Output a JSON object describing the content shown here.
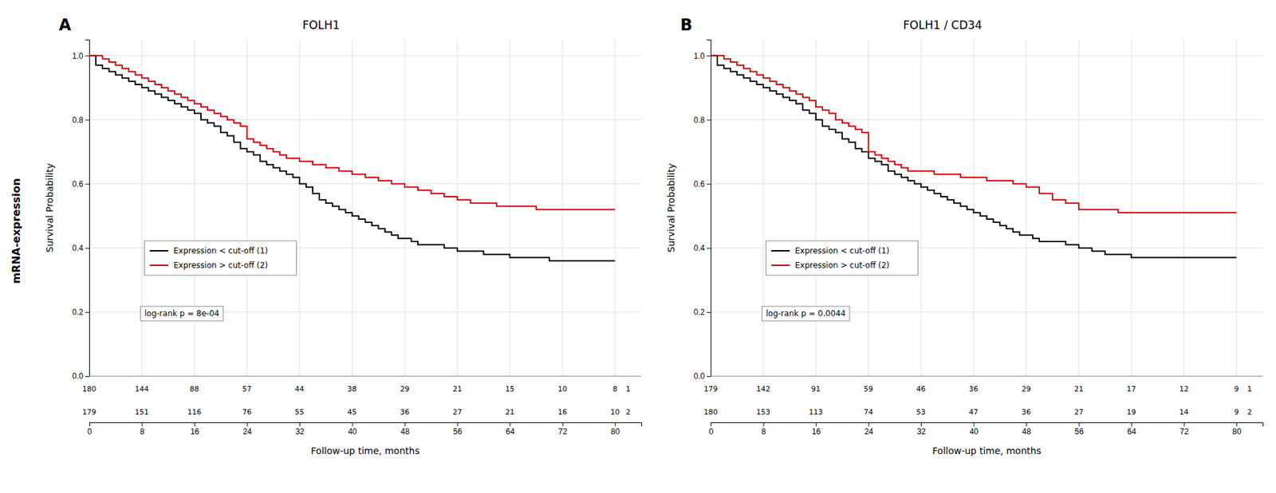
{
  "side_title": "mRNA-expression",
  "chart_data": [
    {
      "type": "line",
      "line_style": "step",
      "title": "FOLH1",
      "panel_label": "A",
      "annotation": "log-rank p = 8e-04",
      "xlabel": "Follow-up time, months",
      "ylabel": "Survival Probability",
      "xlim": [
        0,
        84
      ],
      "ylim": [
        0.0,
        1.05
      ],
      "xticks": [
        0,
        8,
        16,
        24,
        32,
        40,
        48,
        56,
        64,
        72,
        80
      ],
      "yticks": [
        {
          "value": 0.0,
          "label": "0.0"
        },
        0.2,
        0.4,
        0.6,
        0.8,
        {
          "value": 1.0,
          "label": "1.0"
        }
      ],
      "grid": true,
      "legend": "lower left",
      "series": [
        {
          "name": "Expression < cut-off (1)",
          "color": "#000000",
          "x": [
            0,
            1,
            2,
            3,
            4,
            5,
            6,
            7,
            8,
            9,
            10,
            11,
            12,
            13,
            14,
            15,
            16,
            17,
            18,
            19,
            20,
            21,
            22,
            23,
            24,
            25,
            26,
            27,
            28,
            29,
            30,
            31,
            32,
            33,
            34,
            35,
            36,
            37,
            38,
            39,
            40,
            41,
            42,
            43,
            44,
            45,
            46,
            47,
            48,
            49,
            50,
            52,
            54,
            56,
            58,
            60,
            62,
            64,
            66,
            68,
            70,
            72,
            74,
            76,
            78,
            80
          ],
          "values": [
            1.0,
            0.97,
            0.96,
            0.95,
            0.94,
            0.93,
            0.92,
            0.91,
            0.9,
            0.89,
            0.88,
            0.87,
            0.86,
            0.85,
            0.84,
            0.83,
            0.82,
            0.8,
            0.79,
            0.78,
            0.76,
            0.75,
            0.73,
            0.71,
            0.7,
            0.69,
            0.67,
            0.66,
            0.65,
            0.64,
            0.63,
            0.62,
            0.6,
            0.59,
            0.57,
            0.55,
            0.54,
            0.53,
            0.52,
            0.51,
            0.5,
            0.49,
            0.48,
            0.47,
            0.46,
            0.45,
            0.44,
            0.43,
            0.43,
            0.42,
            0.41,
            0.41,
            0.4,
            0.39,
            0.39,
            0.38,
            0.38,
            0.37,
            0.37,
            0.37,
            0.36,
            0.36,
            0.36,
            0.36,
            0.36,
            0.36
          ]
        },
        {
          "name": "Expression > cut-off (2)",
          "color": "#cc0000",
          "x": [
            0,
            2,
            3,
            4,
            5,
            6,
            7,
            8,
            9,
            10,
            11,
            12,
            13,
            14,
            15,
            16,
            17,
            18,
            19,
            20,
            21,
            22,
            23,
            24,
            25,
            26,
            27,
            28,
            29,
            30,
            32,
            34,
            36,
            38,
            40,
            42,
            44,
            46,
            48,
            50,
            52,
            54,
            56,
            58,
            60,
            62,
            64,
            66,
            68,
            70,
            72,
            74,
            76,
            78,
            80
          ],
          "values": [
            1.0,
            0.99,
            0.98,
            0.97,
            0.96,
            0.95,
            0.94,
            0.93,
            0.92,
            0.91,
            0.9,
            0.89,
            0.88,
            0.87,
            0.86,
            0.85,
            0.84,
            0.83,
            0.82,
            0.81,
            0.8,
            0.79,
            0.78,
            0.74,
            0.73,
            0.72,
            0.71,
            0.7,
            0.69,
            0.68,
            0.67,
            0.66,
            0.65,
            0.64,
            0.63,
            0.62,
            0.61,
            0.6,
            0.59,
            0.58,
            0.57,
            0.56,
            0.55,
            0.54,
            0.54,
            0.53,
            0.53,
            0.53,
            0.52,
            0.52,
            0.52,
            0.52,
            0.52,
            0.52,
            0.52
          ]
        }
      ],
      "at_risk": {
        "x": [
          0,
          8,
          16,
          24,
          32,
          40,
          48,
          56,
          64,
          72,
          80,
          82
        ],
        "rows": [
          [
            180,
            144,
            88,
            57,
            44,
            38,
            29,
            21,
            15,
            10,
            8,
            1
          ],
          [
            179,
            151,
            116,
            76,
            55,
            45,
            36,
            27,
            21,
            16,
            10,
            2
          ]
        ]
      }
    },
    {
      "type": "line",
      "line_style": "step",
      "title": "FOLH1 / CD34",
      "panel_label": "B",
      "annotation": "log-rank p = 0.0044",
      "xlabel": "Follow-up time, months",
      "ylabel": "Survival Probability",
      "xlim": [
        0,
        84
      ],
      "ylim": [
        0.0,
        1.05
      ],
      "xticks": [
        0,
        8,
        16,
        24,
        32,
        40,
        48,
        56,
        64,
        72,
        80
      ],
      "yticks": [
        {
          "value": 0.0,
          "label": "0.0"
        },
        0.2,
        0.4,
        0.6,
        0.8,
        {
          "value": 1.0,
          "label": "1.0"
        }
      ],
      "grid": true,
      "legend": "lower left",
      "series": [
        {
          "name": "Expression < cut-off (1)",
          "color": "#000000",
          "x": [
            0,
            1,
            2,
            3,
            4,
            5,
            6,
            7,
            8,
            9,
            10,
            11,
            12,
            13,
            14,
            15,
            16,
            17,
            18,
            19,
            20,
            21,
            22,
            23,
            24,
            25,
            26,
            27,
            28,
            29,
            30,
            31,
            32,
            33,
            34,
            35,
            36,
            37,
            38,
            39,
            40,
            41,
            42,
            43,
            44,
            45,
            46,
            47,
            48,
            49,
            50,
            52,
            54,
            56,
            58,
            60,
            62,
            64,
            66,
            68,
            70,
            72,
            74,
            76,
            78,
            80
          ],
          "values": [
            1.0,
            0.97,
            0.96,
            0.95,
            0.94,
            0.93,
            0.92,
            0.91,
            0.9,
            0.89,
            0.88,
            0.87,
            0.86,
            0.85,
            0.83,
            0.82,
            0.8,
            0.78,
            0.77,
            0.76,
            0.74,
            0.73,
            0.71,
            0.7,
            0.68,
            0.67,
            0.66,
            0.64,
            0.63,
            0.62,
            0.61,
            0.6,
            0.59,
            0.58,
            0.57,
            0.56,
            0.55,
            0.54,
            0.53,
            0.52,
            0.51,
            0.5,
            0.49,
            0.48,
            0.47,
            0.46,
            0.45,
            0.44,
            0.44,
            0.43,
            0.42,
            0.42,
            0.41,
            0.4,
            0.39,
            0.38,
            0.38,
            0.37,
            0.37,
            0.37,
            0.37,
            0.37,
            0.37,
            0.37,
            0.37,
            0.37
          ]
        },
        {
          "name": "Expression > cut-off (2)",
          "color": "#cc0000",
          "x": [
            0,
            2,
            3,
            4,
            5,
            6,
            7,
            8,
            9,
            10,
            11,
            12,
            13,
            14,
            15,
            16,
            17,
            18,
            19,
            20,
            21,
            22,
            23,
            24,
            25,
            26,
            27,
            28,
            29,
            30,
            32,
            34,
            36,
            38,
            40,
            42,
            44,
            46,
            48,
            50,
            52,
            54,
            56,
            58,
            60,
            62,
            64,
            66,
            68,
            70,
            72,
            74,
            76,
            78,
            80
          ],
          "values": [
            1.0,
            0.99,
            0.98,
            0.97,
            0.96,
            0.95,
            0.94,
            0.93,
            0.92,
            0.91,
            0.9,
            0.89,
            0.88,
            0.87,
            0.86,
            0.84,
            0.83,
            0.82,
            0.8,
            0.79,
            0.78,
            0.77,
            0.76,
            0.7,
            0.69,
            0.68,
            0.67,
            0.66,
            0.65,
            0.64,
            0.64,
            0.63,
            0.63,
            0.62,
            0.62,
            0.61,
            0.61,
            0.6,
            0.59,
            0.57,
            0.55,
            0.54,
            0.52,
            0.52,
            0.52,
            0.51,
            0.51,
            0.51,
            0.51,
            0.51,
            0.51,
            0.51,
            0.51,
            0.51,
            0.51
          ]
        }
      ],
      "at_risk": {
        "x": [
          0,
          8,
          16,
          24,
          32,
          40,
          48,
          56,
          64,
          72,
          80,
          82
        ],
        "rows": [
          [
            179,
            142,
            91,
            59,
            46,
            36,
            29,
            21,
            17,
            12,
            9,
            1
          ],
          [
            180,
            153,
            113,
            74,
            53,
            47,
            36,
            27,
            19,
            14,
            9,
            2
          ]
        ]
      }
    }
  ]
}
